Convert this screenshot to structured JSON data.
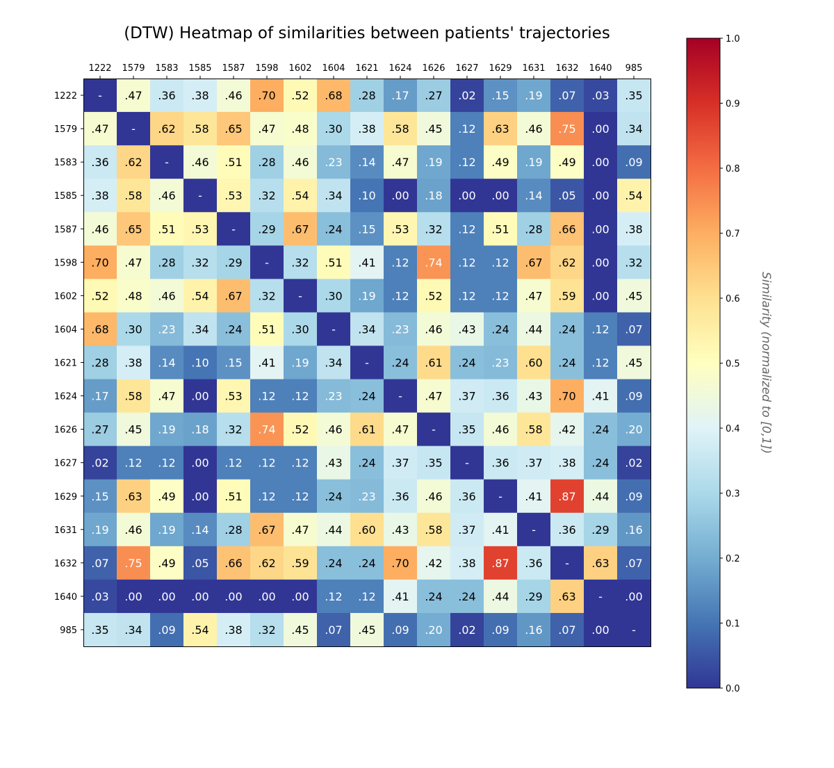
{
  "chart_data": {
    "type": "heatmap",
    "title": "(DTW) Heatmap of similarities between patients' trajectories",
    "x_categories": [
      "1222",
      "1579",
      "1583",
      "1585",
      "1587",
      "1598",
      "1602",
      "1604",
      "1621",
      "1624",
      "1626",
      "1627",
      "1629",
      "1631",
      "1632",
      "1640",
      "985"
    ],
    "y_categories": [
      "1222",
      "1579",
      "1583",
      "1585",
      "1587",
      "1598",
      "1602",
      "1604",
      "1621",
      "1624",
      "1626",
      "1627",
      "1629",
      "1631",
      "1632",
      "1640",
      "985"
    ],
    "diagonal_label": "-",
    "values": [
      [
        null,
        0.47,
        0.36,
        0.38,
        0.46,
        0.7,
        0.52,
        0.68,
        0.28,
        0.17,
        0.27,
        0.02,
        0.15,
        0.19,
        0.07,
        0.03,
        0.35
      ],
      [
        0.47,
        null,
        0.62,
        0.58,
        0.65,
        0.47,
        0.48,
        0.3,
        0.38,
        0.58,
        0.45,
        0.12,
        0.63,
        0.46,
        0.75,
        0.0,
        0.34
      ],
      [
        0.36,
        0.62,
        null,
        0.46,
        0.51,
        0.28,
        0.46,
        0.23,
        0.14,
        0.47,
        0.19,
        0.12,
        0.49,
        0.19,
        0.49,
        0.0,
        0.09
      ],
      [
        0.38,
        0.58,
        0.46,
        null,
        0.53,
        0.32,
        0.54,
        0.34,
        0.1,
        0.0,
        0.18,
        0.0,
        0.0,
        0.14,
        0.05,
        0.0,
        0.54
      ],
      [
        0.46,
        0.65,
        0.51,
        0.53,
        null,
        0.29,
        0.67,
        0.24,
        0.15,
        0.53,
        0.32,
        0.12,
        0.51,
        0.28,
        0.66,
        0.0,
        0.38
      ],
      [
        0.7,
        0.47,
        0.28,
        0.32,
        0.29,
        null,
        0.32,
        0.51,
        0.41,
        0.12,
        0.74,
        0.12,
        0.12,
        0.67,
        0.62,
        0.0,
        0.32
      ],
      [
        0.52,
        0.48,
        0.46,
        0.54,
        0.67,
        0.32,
        null,
        0.3,
        0.19,
        0.12,
        0.52,
        0.12,
        0.12,
        0.47,
        0.59,
        0.0,
        0.45
      ],
      [
        0.68,
        0.3,
        0.23,
        0.34,
        0.24,
        0.51,
        0.3,
        null,
        0.34,
        0.23,
        0.46,
        0.43,
        0.24,
        0.44,
        0.24,
        0.12,
        0.07
      ],
      [
        0.28,
        0.38,
        0.14,
        0.1,
        0.15,
        0.41,
        0.19,
        0.34,
        null,
        0.24,
        0.61,
        0.24,
        0.23,
        0.6,
        0.24,
        0.12,
        0.45
      ],
      [
        0.17,
        0.58,
        0.47,
        0.0,
        0.53,
        0.12,
        0.12,
        0.23,
        0.24,
        null,
        0.47,
        0.37,
        0.36,
        0.43,
        0.7,
        0.41,
        0.09
      ],
      [
        0.27,
        0.45,
        0.19,
        0.18,
        0.32,
        0.74,
        0.52,
        0.46,
        0.61,
        0.47,
        null,
        0.35,
        0.46,
        0.58,
        0.42,
        0.24,
        0.2
      ],
      [
        0.02,
        0.12,
        0.12,
        0.0,
        0.12,
        0.12,
        0.12,
        0.43,
        0.24,
        0.37,
        0.35,
        null,
        0.36,
        0.37,
        0.38,
        0.24,
        0.02
      ],
      [
        0.15,
        0.63,
        0.49,
        0.0,
        0.51,
        0.12,
        0.12,
        0.24,
        0.23,
        0.36,
        0.46,
        0.36,
        null,
        0.41,
        0.87,
        0.44,
        0.09
      ],
      [
        0.19,
        0.46,
        0.19,
        0.14,
        0.28,
        0.67,
        0.47,
        0.44,
        0.6,
        0.43,
        0.58,
        0.37,
        0.41,
        null,
        0.36,
        0.29,
        0.16
      ],
      [
        0.07,
        0.75,
        0.49,
        0.05,
        0.66,
        0.62,
        0.59,
        0.24,
        0.24,
        0.7,
        0.42,
        0.38,
        0.87,
        0.36,
        null,
        0.63,
        0.07
      ],
      [
        0.03,
        0.0,
        0.0,
        0.0,
        0.0,
        0.0,
        0.0,
        0.12,
        0.12,
        0.41,
        0.24,
        0.24,
        0.44,
        0.29,
        0.63,
        null,
        0.0
      ],
      [
        0.35,
        0.34,
        0.09,
        0.54,
        0.38,
        0.32,
        0.45,
        0.07,
        0.45,
        0.09,
        0.2,
        0.02,
        0.09,
        0.16,
        0.07,
        0.0,
        null
      ]
    ],
    "colormap": "RdYlBu_r",
    "colorbar": {
      "label": "Similarity (normalized to [0,1])",
      "range": [
        0,
        1
      ],
      "ticks": [
        "0.0",
        "0.1",
        "0.2",
        "0.3",
        "0.4",
        "0.5",
        "0.6",
        "0.7",
        "0.8",
        "0.9",
        "1.0"
      ]
    },
    "colors": {
      "diagonal": "#313695",
      "stops": [
        "#313695",
        "#4575b4",
        "#74add1",
        "#abd9e9",
        "#e0f3f8",
        "#ffffbf",
        "#fee090",
        "#fdae61",
        "#f46d43",
        "#d73027",
        "#a50026"
      ]
    }
  }
}
